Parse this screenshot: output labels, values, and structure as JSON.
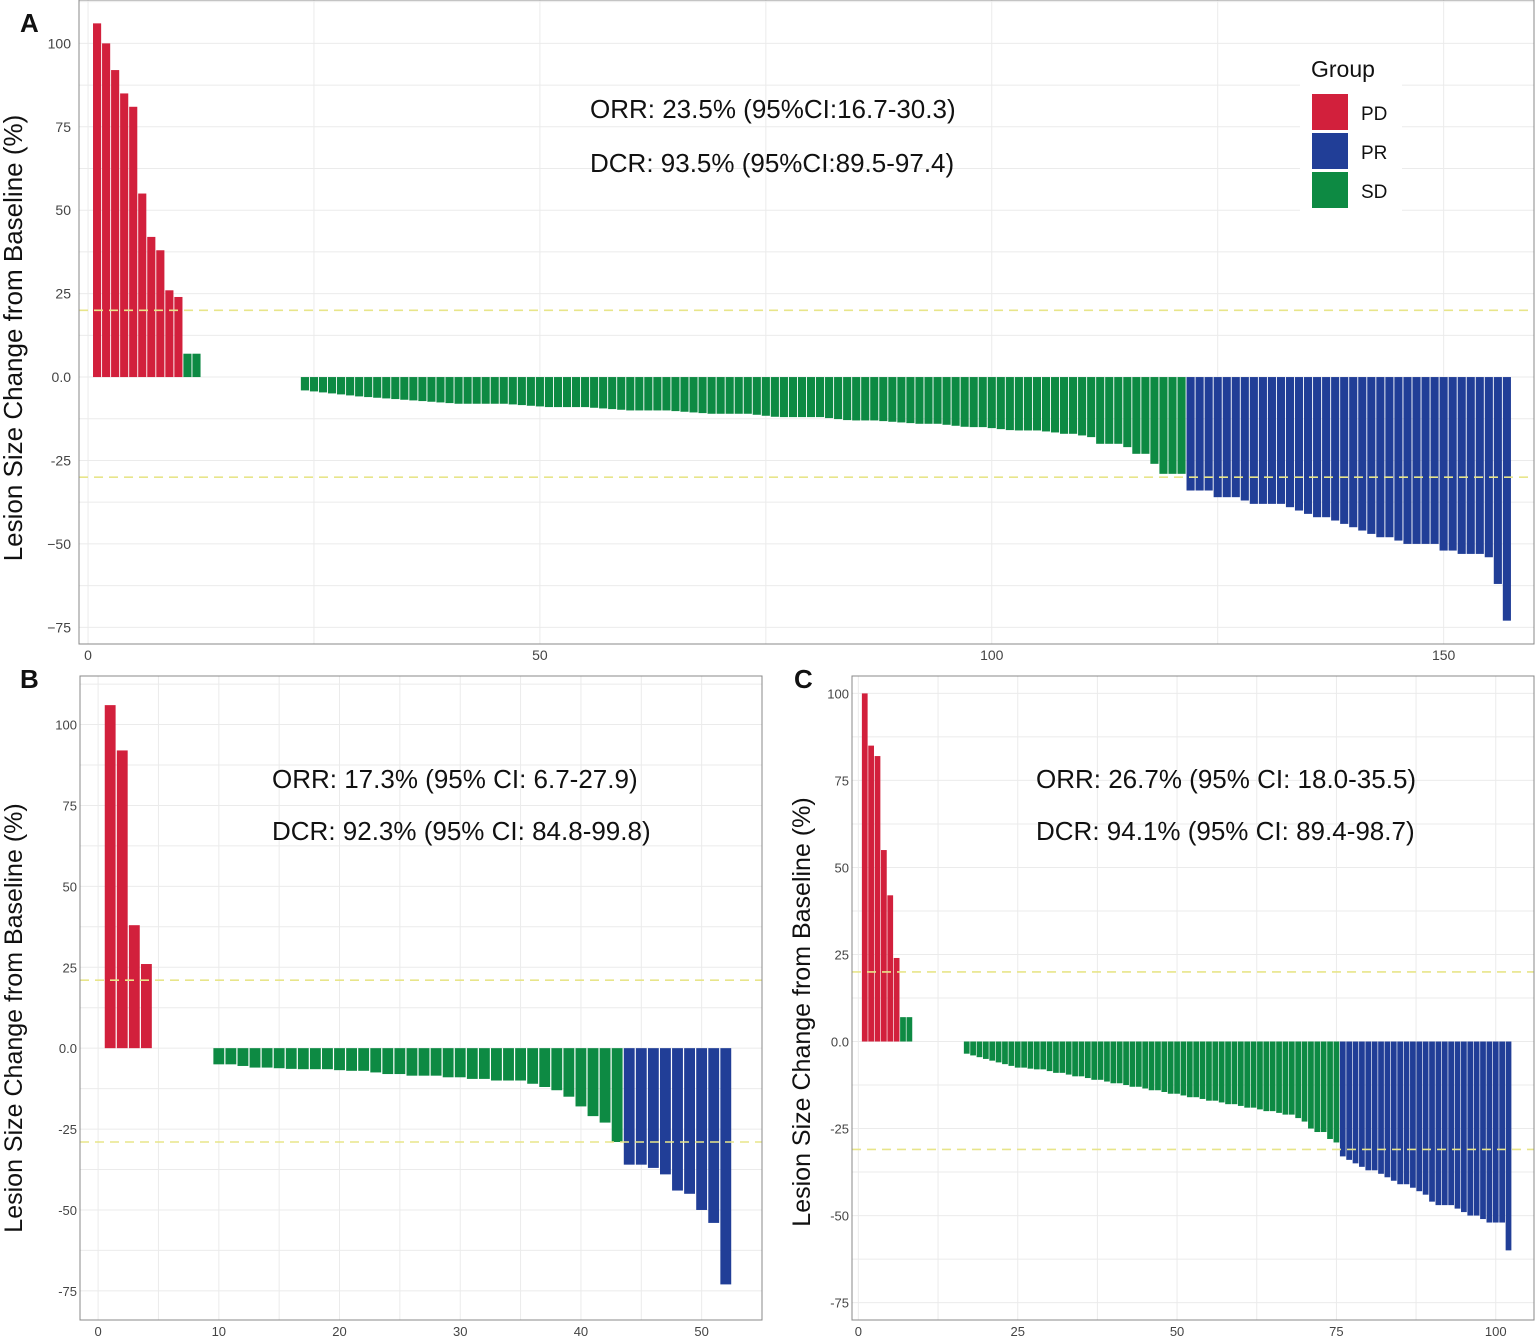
{
  "colors": {
    "PD": "#d2203c",
    "PR": "#213e97",
    "SD": "#0d8a43",
    "threshold": "#e8e58a",
    "grid": "#ebebeb",
    "axis": "#888888"
  },
  "legend": {
    "title": "Group",
    "items": [
      {
        "key": "PD",
        "label": "PD"
      },
      {
        "key": "PR",
        "label": "PR"
      },
      {
        "key": "SD",
        "label": "SD"
      }
    ]
  },
  "chart_data": [
    {
      "id": "A",
      "panel_label": "A",
      "type": "bar",
      "ylabel": "Lesion Size Change from Baseline (%)",
      "xlim": [
        -1,
        160
      ],
      "ylim": [
        -80,
        113
      ],
      "xticks": [
        0,
        50,
        100,
        150
      ],
      "yticks": [
        -75,
        -50,
        -25,
        0,
        25,
        50,
        75,
        100
      ],
      "ytick_labels": [
        "−75",
        "−50",
        "-25",
        "0.0",
        "25",
        "50",
        "75",
        "100"
      ],
      "thresholds": [
        20,
        -30
      ],
      "annotations": [
        "ORR: 23.5% (95%CI:16.7-30.3)",
        "DCR: 93.5% (95%CI:89.5-97.4)"
      ],
      "series": [
        {
          "name": "PD",
          "x": [
            1,
            2,
            3,
            4,
            5,
            6,
            7,
            8,
            9,
            10
          ],
          "values": [
            106,
            100,
            92,
            85,
            81,
            55,
            42,
            38,
            26,
            24
          ]
        },
        {
          "name": "SD",
          "x": [
            11,
            12,
            24,
            25,
            26,
            27,
            28,
            29,
            30,
            31,
            32,
            33,
            34,
            35,
            36,
            37,
            38,
            39,
            40,
            41,
            42,
            43,
            44,
            45,
            46,
            47,
            48,
            49,
            50,
            51,
            52,
            53,
            54,
            55,
            56,
            57,
            58,
            59,
            60,
            61,
            62,
            63,
            64,
            65,
            66,
            67,
            68,
            69,
            70,
            71,
            72,
            73,
            74,
            75,
            76,
            77,
            78,
            79,
            80,
            81,
            82,
            83,
            84,
            85,
            86,
            87,
            88,
            89,
            90,
            91,
            92,
            93,
            94,
            95,
            96,
            97,
            98,
            99,
            100,
            101,
            102,
            103,
            104,
            105,
            106,
            107,
            108,
            109,
            110,
            111,
            112,
            113,
            114,
            115,
            116,
            117,
            118,
            119,
            120,
            121
          ],
          "values": [
            7,
            7,
            -4,
            -4.3,
            -4.6,
            -4.9,
            -5.2,
            -5.5,
            -5.8,
            -6,
            -6.2,
            -6.4,
            -6.6,
            -6.8,
            -7,
            -7.2,
            -7.4,
            -7.6,
            -7.8,
            -8,
            -8,
            -8,
            -8,
            -8,
            -8,
            -8.2,
            -8.4,
            -8.6,
            -8.8,
            -9,
            -9,
            -9,
            -9,
            -9,
            -9.2,
            -9.4,
            -9.6,
            -9.8,
            -10,
            -10,
            -10,
            -10,
            -10,
            -10.2,
            -10.4,
            -10.6,
            -10.8,
            -11,
            -11,
            -11,
            -11,
            -11,
            -11.3,
            -11.6,
            -11.9,
            -12,
            -12,
            -12,
            -12,
            -12,
            -12.3,
            -12.6,
            -12.9,
            -13,
            -13,
            -13,
            -13.2,
            -13.4,
            -13.6,
            -13.8,
            -14,
            -14,
            -14,
            -14.3,
            -14.6,
            -14.9,
            -15,
            -15,
            -15.3,
            -15.6,
            -15.9,
            -16,
            -16,
            -16,
            -16.3,
            -16.6,
            -17,
            -17,
            -17.5,
            -18,
            -20,
            -20,
            -20,
            -21,
            -23,
            -23,
            -26,
            -29,
            -29,
            -29
          ]
        },
        {
          "name": "PR",
          "x": [
            122,
            123,
            124,
            125,
            126,
            127,
            128,
            129,
            130,
            131,
            132,
            133,
            134,
            135,
            136,
            137,
            138,
            139,
            140,
            141,
            142,
            143,
            144,
            145,
            146,
            147,
            148,
            149,
            150,
            151,
            152,
            153,
            154,
            155,
            156,
            157
          ],
          "values": [
            -34,
            -34,
            -34,
            -36,
            -36,
            -36,
            -37,
            -38,
            -38,
            -38,
            -38,
            -39,
            -40,
            -41,
            -42,
            -42,
            -43,
            -44,
            -45,
            -46,
            -47,
            -48,
            -48,
            -49,
            -50,
            -50,
            -50,
            -50,
            -52,
            -52,
            -53,
            -53,
            -53,
            -54,
            -62,
            -73
          ]
        }
      ]
    },
    {
      "id": "B",
      "panel_label": "B",
      "type": "bar",
      "ylabel": "Lesion Size Change from Baseline (%)",
      "xlim": [
        -1.5,
        55
      ],
      "ylim": [
        -84,
        115
      ],
      "xticks": [
        0,
        10,
        20,
        30,
        40,
        50
      ],
      "yticks": [
        -75,
        -50,
        -25,
        0,
        25,
        50,
        75,
        100
      ],
      "ytick_labels": [
        "-75",
        "-50",
        "-25",
        "0.0",
        "25",
        "50",
        "75",
        "100"
      ],
      "thresholds": [
        21,
        -29
      ],
      "annotations": [
        "ORR: 17.3% (95% CI: 6.7-27.9)",
        "DCR: 92.3% (95% CI: 84.8-99.8)"
      ],
      "series": [
        {
          "name": "PD",
          "x": [
            1,
            2,
            3,
            4
          ],
          "values": [
            106,
            92,
            38,
            26
          ]
        },
        {
          "name": "SD",
          "x": [
            10,
            11,
            12,
            13,
            14,
            15,
            16,
            17,
            18,
            19,
            20,
            21,
            22,
            23,
            24,
            25,
            26,
            27,
            28,
            29,
            30,
            31,
            32,
            33,
            34,
            35,
            36,
            37,
            38,
            39,
            40,
            41,
            42,
            43
          ],
          "values": [
            -5,
            -5,
            -5.5,
            -6,
            -6,
            -6.2,
            -6.4,
            -6.5,
            -6.5,
            -6.5,
            -6.8,
            -7,
            -7,
            -7.5,
            -8,
            -8,
            -8.5,
            -8.5,
            -8.5,
            -9,
            -9,
            -9.5,
            -9.5,
            -10,
            -10,
            -10,
            -11,
            -12,
            -13,
            -15,
            -18,
            -21,
            -23,
            -29
          ]
        },
        {
          "name": "PR",
          "x": [
            44,
            45,
            46,
            47,
            48,
            49,
            50,
            51,
            52
          ],
          "values": [
            -36,
            -36,
            -37,
            -39,
            -44,
            -45,
            -50,
            -54,
            -73
          ]
        }
      ]
    },
    {
      "id": "C",
      "panel_label": "C",
      "type": "bar",
      "ylabel": "Lesion Size Change from Baseline (%)",
      "xlim": [
        -1,
        106
      ],
      "ylim": [
        -80,
        105
      ],
      "xticks": [
        0,
        25,
        50,
        75,
        100
      ],
      "yticks": [
        -75,
        -50,
        -25,
        0,
        25,
        50,
        75,
        100
      ],
      "ytick_labels": [
        "-75",
        "-50",
        "-25",
        "0.0",
        "25",
        "50",
        "75",
        "100"
      ],
      "thresholds": [
        20,
        -31
      ],
      "annotations": [
        "ORR: 26.7% (95% CI: 18.0-35.5)",
        "DCR: 94.1% (95% CI: 89.4-98.7)"
      ],
      "series": [
        {
          "name": "PD",
          "x": [
            1,
            2,
            3,
            4,
            5,
            6
          ],
          "values": [
            100,
            85,
            82,
            55,
            42,
            24
          ]
        },
        {
          "name": "SD",
          "x": [
            7,
            8,
            17,
            18,
            19,
            20,
            21,
            22,
            23,
            24,
            25,
            26,
            27,
            28,
            29,
            30,
            31,
            32,
            33,
            34,
            35,
            36,
            37,
            38,
            39,
            40,
            41,
            42,
            43,
            44,
            45,
            46,
            47,
            48,
            49,
            50,
            51,
            52,
            53,
            54,
            55,
            56,
            57,
            58,
            59,
            60,
            61,
            62,
            63,
            64,
            65,
            66,
            67,
            68,
            69,
            70,
            71,
            72,
            73,
            74,
            75
          ],
          "values": [
            7,
            7,
            -3.5,
            -4,
            -4.5,
            -5,
            -5.5,
            -6,
            -6.5,
            -7,
            -7.5,
            -7.5,
            -7.8,
            -8,
            -8,
            -8.5,
            -9,
            -9,
            -9.5,
            -10,
            -10,
            -10.5,
            -11,
            -11,
            -11.5,
            -12,
            -12,
            -12.5,
            -13,
            -13,
            -13.5,
            -14,
            -14,
            -14.5,
            -15,
            -15,
            -15.5,
            -16,
            -16,
            -16.5,
            -17,
            -17,
            -17.5,
            -18,
            -18,
            -18.5,
            -19,
            -19,
            -19.5,
            -20,
            -20,
            -20.5,
            -21,
            -21,
            -22,
            -23,
            -25,
            -26,
            -26,
            -28,
            -29
          ]
        },
        {
          "name": "PR",
          "x": [
            76,
            77,
            78,
            79,
            80,
            81,
            82,
            83,
            84,
            85,
            86,
            87,
            88,
            89,
            90,
            91,
            92,
            93,
            94,
            95,
            96,
            97,
            98,
            99,
            100,
            101,
            102
          ],
          "values": [
            -33,
            -34,
            -35,
            -36,
            -37,
            -37,
            -38,
            -39,
            -40,
            -41,
            -41,
            -42,
            -43,
            -44,
            -46,
            -47,
            -47,
            -47,
            -48,
            -49,
            -50,
            -50,
            -51,
            -52,
            -52,
            -52,
            -60
          ]
        }
      ]
    }
  ]
}
